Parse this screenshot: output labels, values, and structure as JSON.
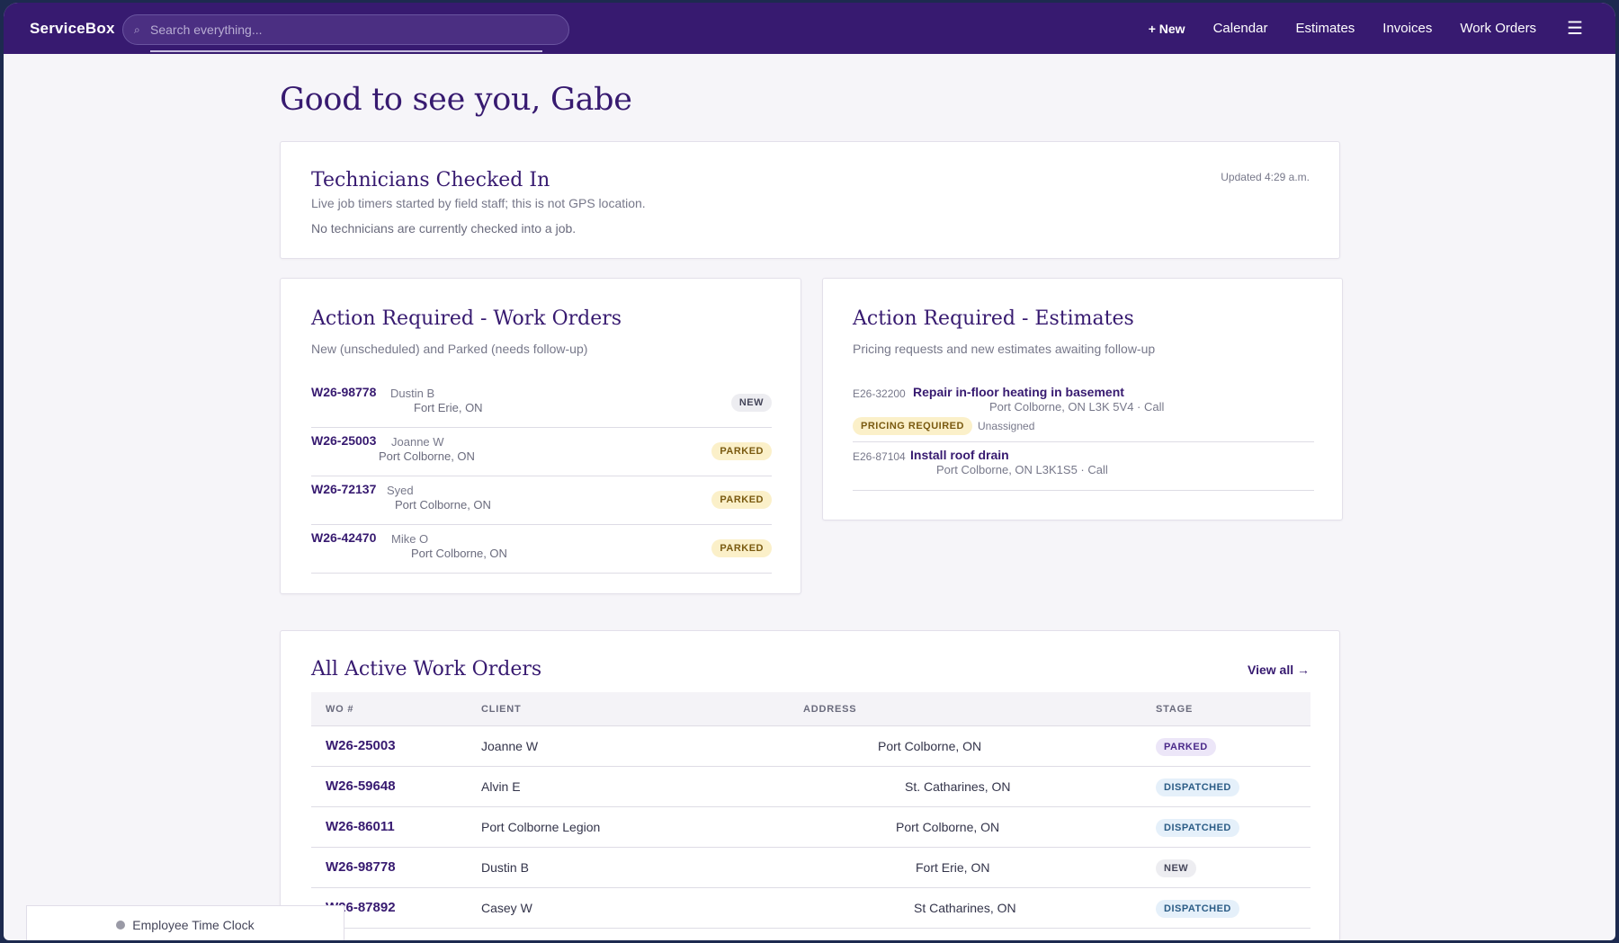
{
  "nav": {
    "brand": "ServiceBox",
    "search_placeholder": "Search everything...",
    "links": [
      "+ New",
      "Calendar",
      "Estimates",
      "Invoices",
      "Work Orders"
    ]
  },
  "greeting": "Good to see you, Gabe",
  "technicians": {
    "title": "Technicians Checked In",
    "subtitle": "Live job timers started by field staff; this is not GPS location.",
    "empty": "No technicians are currently checked into a job.",
    "updated": "Updated 4:29 a.m."
  },
  "action_wo": {
    "title": "Action Required - Work Orders",
    "subtitle": "New (unscheduled) and Parked (needs follow-up)",
    "items": [
      {
        "wo": "W26-98778",
        "client": "Dustin B",
        "city": "Fort Erie, ON",
        "status": "NEW"
      },
      {
        "wo": "W26-25003",
        "client": "Joanne W",
        "city": "Port Colborne, ON",
        "status": "PARKED"
      },
      {
        "wo": "W26-72137",
        "client": "Syed",
        "city": "Port Colborne, ON",
        "status": "PARKED"
      },
      {
        "wo": "W26-42470",
        "client": "Mike O",
        "city": "Port Colborne, ON",
        "status": "PARKED"
      }
    ]
  },
  "action_est": {
    "title": "Action Required - Estimates",
    "subtitle": "Pricing requests and new estimates awaiting follow-up",
    "items": [
      {
        "id": "E26-32200",
        "title": "Repair in-floor heating in basement",
        "address": "Port Colborne, ON L3K 5V4 · Call",
        "badge": "PRICING REQUIRED",
        "assignee": "Unassigned"
      },
      {
        "id": "E26-87104",
        "title": "Install roof drain",
        "address": "Port Colborne, ON L3K1S5 · Call"
      }
    ]
  },
  "all_wo": {
    "title": "All Active Work Orders",
    "view_all": "View all →",
    "columns": [
      "WO #",
      "CLIENT",
      "ADDRESS",
      "STAGE"
    ],
    "rows": [
      {
        "wo": "W26-25003",
        "client": "Joanne W",
        "address": "Port Colborne, ON",
        "stage": "PARKED"
      },
      {
        "wo": "W26-59648",
        "client": "Alvin E",
        "address": "St. Catharines, ON",
        "stage": "DISPATCHED"
      },
      {
        "wo": "W26-86011",
        "client": "Port Colborne Legion",
        "address": "Port Colborne, ON",
        "stage": "DISPATCHED"
      },
      {
        "wo": "W26-98778",
        "client": "Dustin B",
        "address": "Fort Erie, ON",
        "stage": "NEW"
      },
      {
        "wo": "W26-87892",
        "client": "Casey W",
        "address": "St Catharines, ON",
        "stage": "DISPATCHED"
      }
    ]
  },
  "time_clock": "Employee Time Clock",
  "colors": {
    "brand": "#371a70",
    "parked": "#fbf0c9",
    "dispatched": "#e5f0fa"
  }
}
